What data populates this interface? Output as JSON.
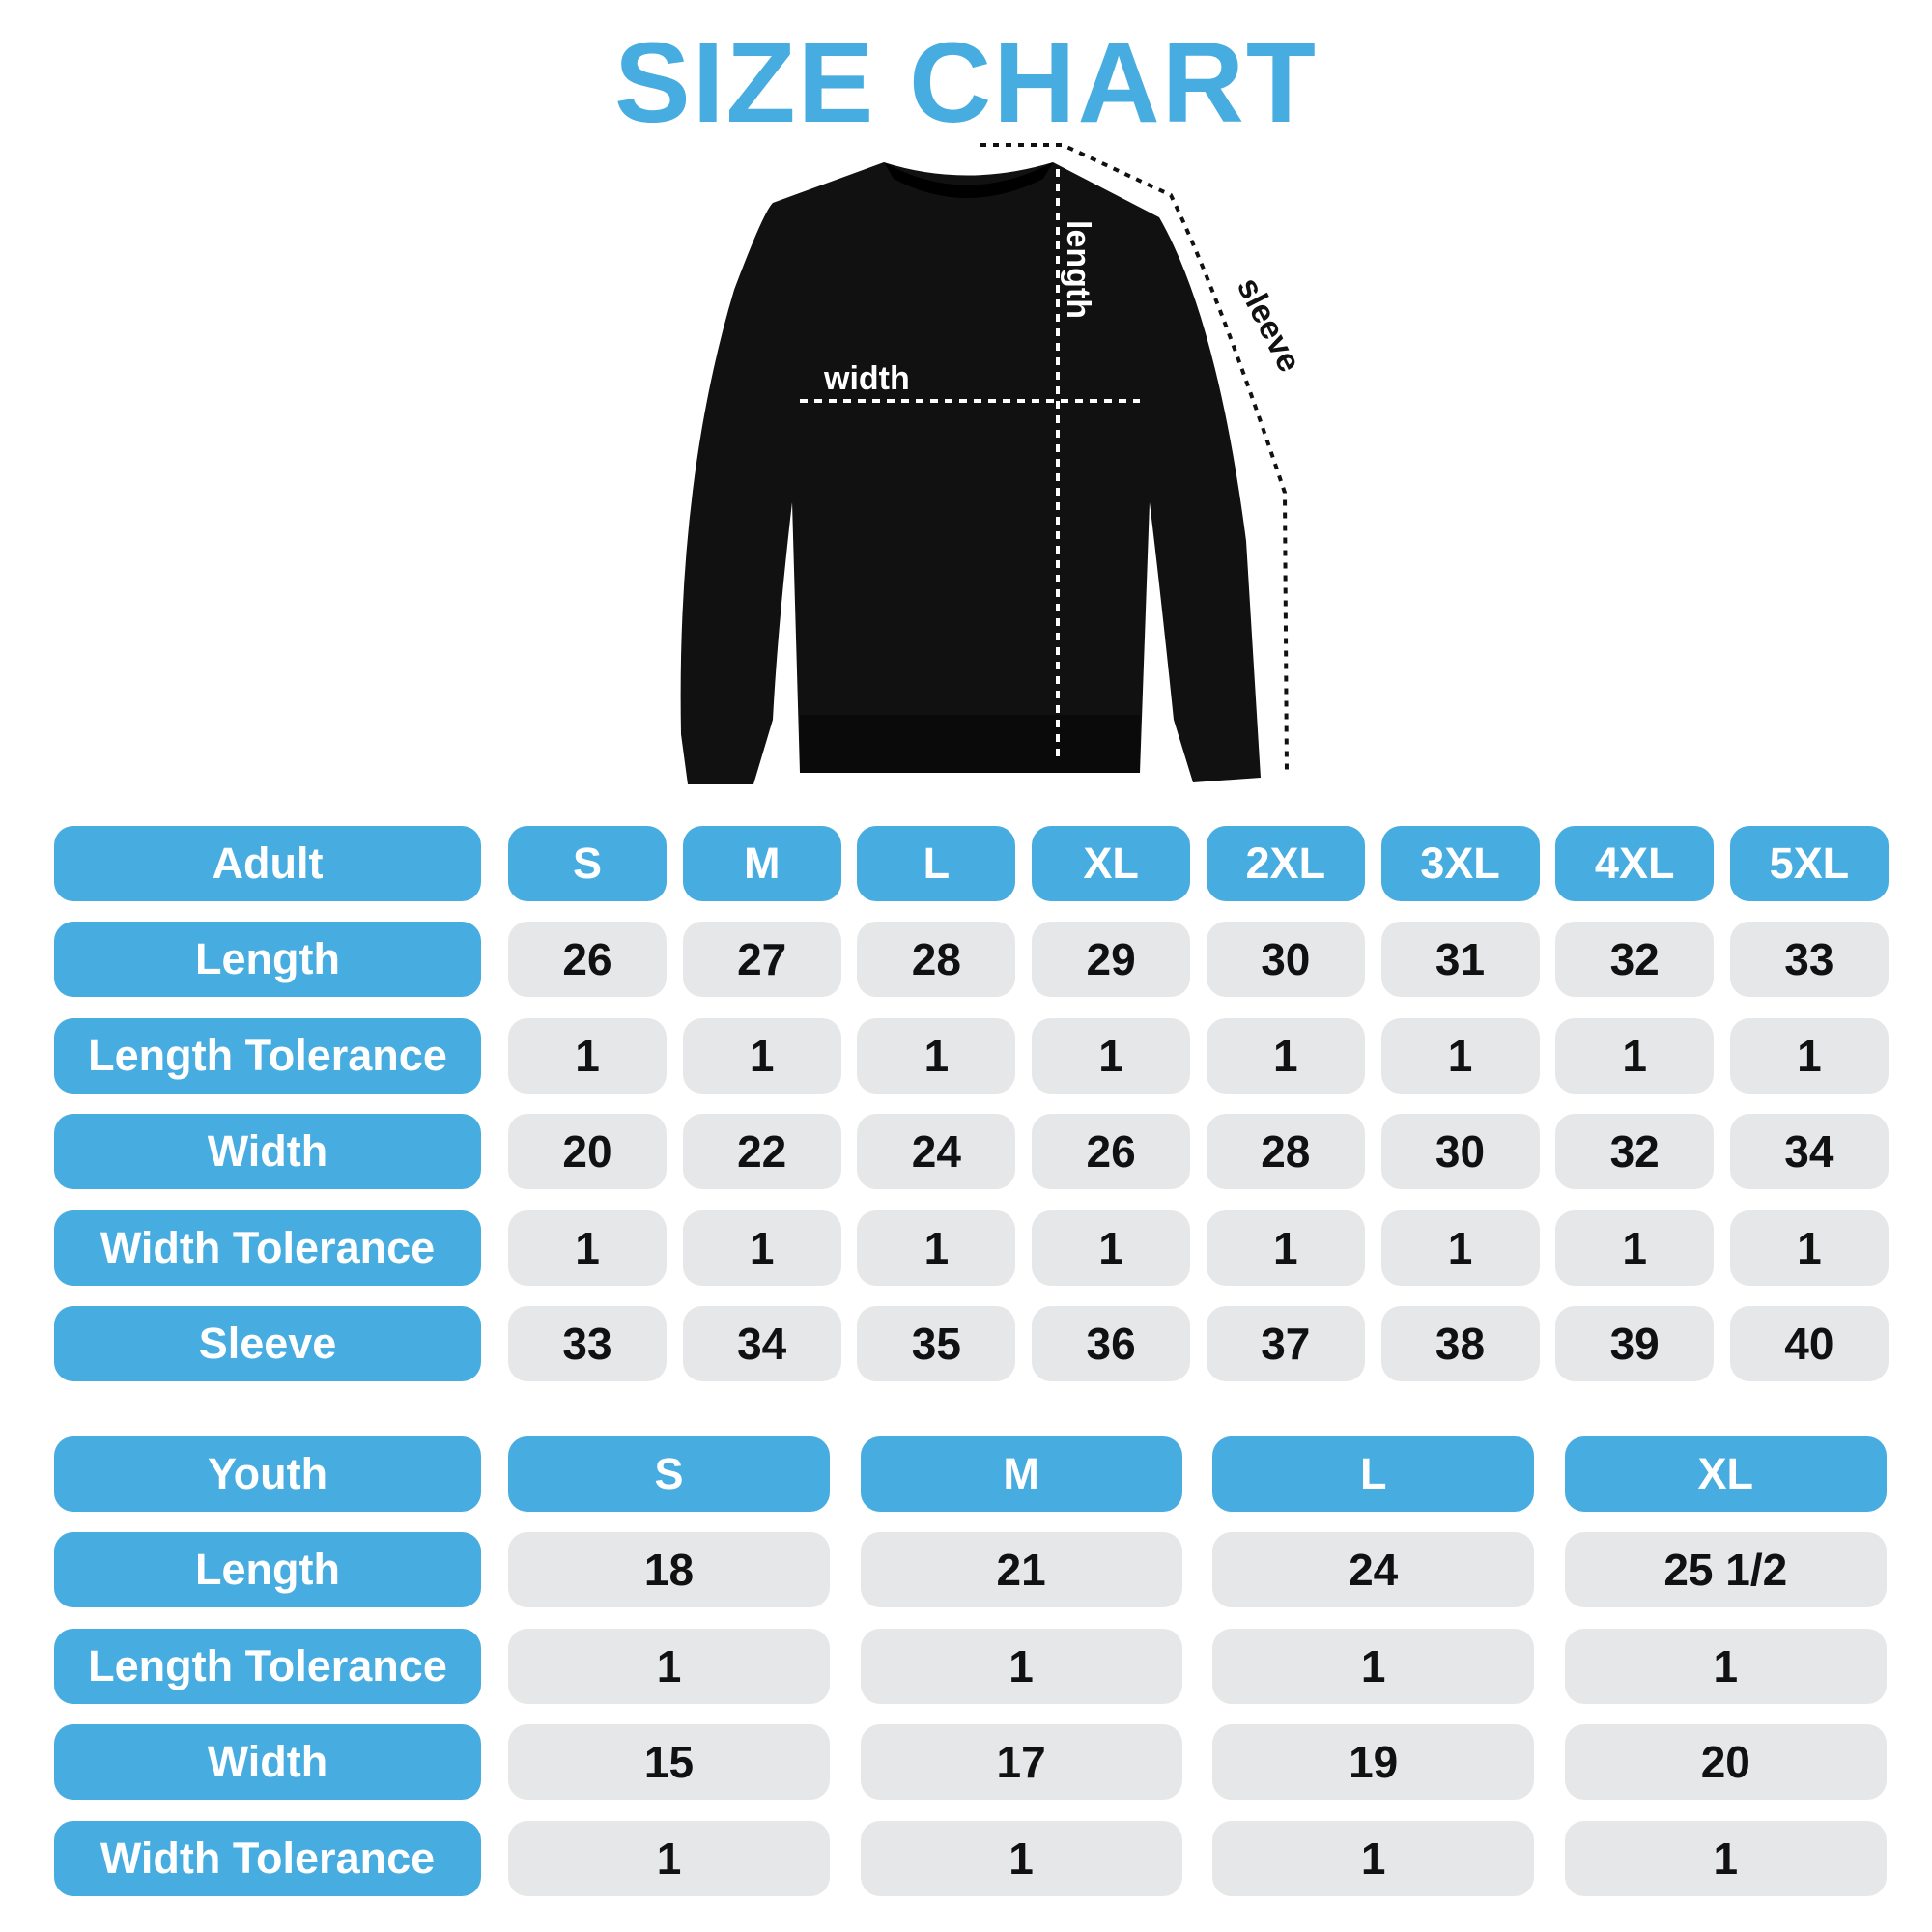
{
  "title": "SIZE CHART",
  "colors": {
    "accent": "#47ace0",
    "cell": "#e6e7e9"
  },
  "diagram_labels": {
    "width": "width",
    "length": "length",
    "sleeve": "sleeve"
  },
  "adult": {
    "header": "Adult",
    "sizes": [
      "S",
      "M",
      "L",
      "XL",
      "2XL",
      "3XL",
      "4XL",
      "5XL"
    ],
    "rows": [
      {
        "label": "Length",
        "values": [
          "26",
          "27",
          "28",
          "29",
          "30",
          "31",
          "32",
          "33"
        ]
      },
      {
        "label": "Length Tolerance",
        "values": [
          "1",
          "1",
          "1",
          "1",
          "1",
          "1",
          "1",
          "1"
        ]
      },
      {
        "label": "Width",
        "values": [
          "20",
          "22",
          "24",
          "26",
          "28",
          "30",
          "32",
          "34"
        ]
      },
      {
        "label": "Width Tolerance",
        "values": [
          "1",
          "1",
          "1",
          "1",
          "1",
          "1",
          "1",
          "1"
        ]
      },
      {
        "label": "Sleeve",
        "values": [
          "33",
          "34",
          "35",
          "36",
          "37",
          "38",
          "39",
          "40"
        ]
      }
    ]
  },
  "youth": {
    "header": "Youth",
    "sizes": [
      "S",
      "M",
      "L",
      "XL"
    ],
    "rows": [
      {
        "label": "Length",
        "values": [
          "18",
          "21",
          "24",
          "25 1/2"
        ]
      },
      {
        "label": "Length Tolerance",
        "values": [
          "1",
          "1",
          "1",
          "1"
        ]
      },
      {
        "label": "Width",
        "values": [
          "15",
          "17",
          "19",
          "20"
        ]
      },
      {
        "label": "Width Tolerance",
        "values": [
          "1",
          "1",
          "1",
          "1"
        ]
      }
    ]
  }
}
